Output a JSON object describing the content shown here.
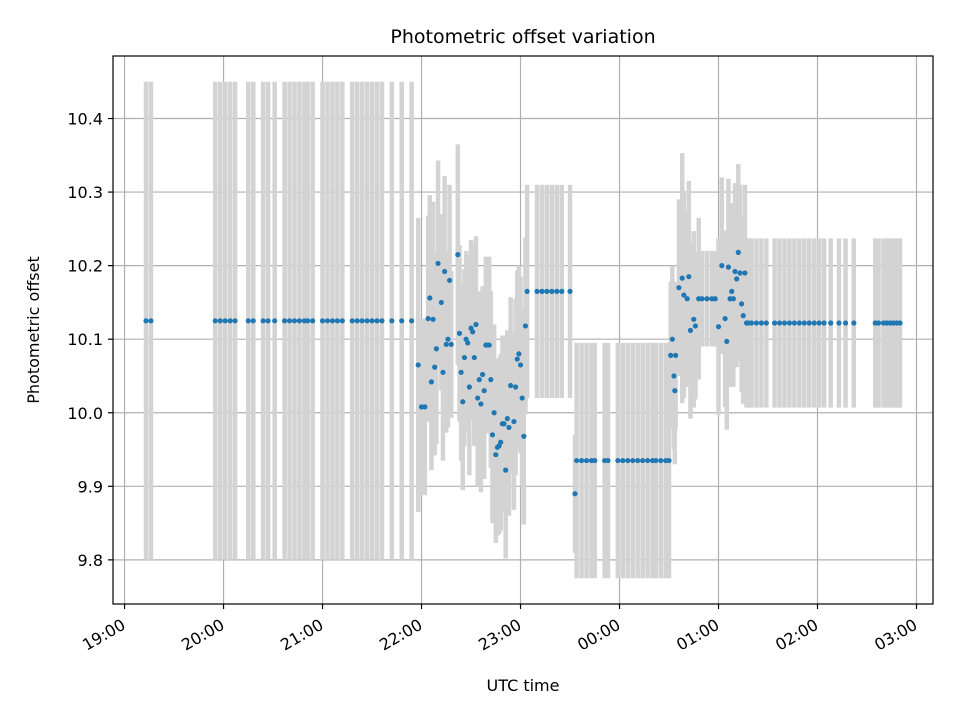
{
  "chart_data": {
    "type": "scatter",
    "title": "Photometric offset variation",
    "xlabel": "UTC time",
    "ylabel": "Photometric offset",
    "x_ticks": [
      "19:00",
      "20:00",
      "21:00",
      "22:00",
      "23:00",
      "00:00",
      "01:00",
      "02:00",
      "03:00"
    ],
    "y_ticks": [
      "9.8",
      "9.9",
      "10.0",
      "10.1",
      "10.2",
      "10.3",
      "10.4"
    ],
    "x_tick_values_min": [
      -300,
      -240,
      -180,
      -120,
      -60,
      0,
      60,
      120,
      180
    ],
    "y_tick_values": [
      9.8,
      9.9,
      10.0,
      10.1,
      10.2,
      10.3,
      10.4
    ],
    "xlim_min": [
      -307,
      190
    ],
    "ylim": [
      9.74,
      10.485
    ],
    "grid": true,
    "colors": {
      "marker": "#1f77b4",
      "errorbar": "#d3d3d3",
      "grid": "#b0b0b0"
    },
    "points": [
      [
        -287,
        10.125,
        0.325
      ],
      [
        -284,
        10.125,
        0.325
      ],
      [
        -245,
        10.125,
        0.325
      ],
      [
        -242,
        10.125,
        0.325
      ],
      [
        -239,
        10.125,
        0.325
      ],
      [
        -236,
        10.125,
        0.325
      ],
      [
        -233,
        10.125,
        0.325
      ],
      [
        -225,
        10.125,
        0.325
      ],
      [
        -222,
        10.125,
        0.325
      ],
      [
        -216,
        10.125,
        0.325
      ],
      [
        -213,
        10.125,
        0.325
      ],
      [
        -209,
        10.125,
        0.325
      ],
      [
        -203,
        10.125,
        0.325
      ],
      [
        -200,
        10.125,
        0.325
      ],
      [
        -197,
        10.125,
        0.325
      ],
      [
        -194,
        10.125,
        0.325
      ],
      [
        -191,
        10.125,
        0.325
      ],
      [
        -189,
        10.125,
        0.325
      ],
      [
        -186,
        10.125,
        0.325
      ],
      [
        -180,
        10.125,
        0.325
      ],
      [
        -177,
        10.125,
        0.325
      ],
      [
        -174,
        10.125,
        0.325
      ],
      [
        -171,
        10.125,
        0.325
      ],
      [
        -168,
        10.125,
        0.325
      ],
      [
        -162,
        10.125,
        0.325
      ],
      [
        -159,
        10.125,
        0.325
      ],
      [
        -156,
        10.125,
        0.325
      ],
      [
        -153,
        10.125,
        0.325
      ],
      [
        -150,
        10.125,
        0.325
      ],
      [
        -147,
        10.125,
        0.325
      ],
      [
        -144,
        10.125,
        0.325
      ],
      [
        -138,
        10.125,
        0.325
      ],
      [
        -132,
        10.125,
        0.325
      ],
      [
        -126,
        10.125,
        0.325
      ],
      [
        -122,
        10.065,
        0.2
      ],
      [
        -120,
        10.008,
        0.12
      ],
      [
        -118,
        10.008,
        0.12
      ],
      [
        -116,
        10.128,
        0.14
      ],
      [
        -115,
        10.156,
        0.14
      ],
      [
        -114,
        10.042,
        0.12
      ],
      [
        -113,
        10.127,
        0.16
      ],
      [
        -112,
        10.062,
        0.12
      ],
      [
        -111,
        10.087,
        0.13
      ],
      [
        -110,
        10.203,
        0.14
      ],
      [
        -108,
        10.15,
        0.12
      ],
      [
        -107,
        10.055,
        0.12
      ],
      [
        -106,
        10.192,
        0.13
      ],
      [
        -105,
        10.093,
        0.12
      ],
      [
        -104,
        10.1,
        0.12
      ],
      [
        -103,
        10.18,
        0.13
      ],
      [
        -102,
        10.093,
        0.1
      ],
      [
        -98,
        10.215,
        0.15
      ],
      [
        -97,
        10.108,
        0.12
      ],
      [
        -96,
        10.055,
        0.12
      ],
      [
        -95,
        10.015,
        0.12
      ],
      [
        -94,
        10.075,
        0.12
      ],
      [
        -93,
        10.1,
        0.12
      ],
      [
        -92,
        10.095,
        0.12
      ],
      [
        -91,
        10.035,
        0.12
      ],
      [
        -90,
        10.115,
        0.12
      ],
      [
        -89,
        10.11,
        0.12
      ],
      [
        -88,
        10.075,
        0.12
      ],
      [
        -87,
        10.12,
        0.12
      ],
      [
        -86,
        10.02,
        0.12
      ],
      [
        -85,
        10.045,
        0.12
      ],
      [
        -84,
        10.012,
        0.12
      ],
      [
        -83,
        10.052,
        0.12
      ],
      [
        -82,
        10.03,
        0.12
      ],
      [
        -81,
        10.092,
        0.12
      ],
      [
        -80,
        10.092,
        0.12
      ],
      [
        -79,
        10.092,
        0.12
      ],
      [
        -78,
        10.045,
        0.12
      ],
      [
        -77,
        9.97,
        0.12
      ],
      [
        -76,
        10.0,
        0.12
      ],
      [
        -75,
        9.943,
        0.12
      ],
      [
        -74,
        9.953,
        0.12
      ],
      [
        -73,
        9.955,
        0.12
      ],
      [
        -72,
        9.96,
        0.12
      ],
      [
        -71,
        9.985,
        0.12
      ],
      [
        -70,
        9.985,
        0.12
      ],
      [
        -69,
        9.922,
        0.12
      ],
      [
        -68,
        9.992,
        0.12
      ],
      [
        -67,
        9.98,
        0.12
      ],
      [
        -66,
        10.037,
        0.12
      ],
      [
        -64,
        9.988,
        0.12
      ],
      [
        -63,
        10.035,
        0.12
      ],
      [
        -62,
        10.073,
        0.12
      ],
      [
        -61,
        10.08,
        0.12
      ],
      [
        -60,
        10.065,
        0.12
      ],
      [
        -59,
        10.02,
        0.12
      ],
      [
        -58,
        9.968,
        0.12
      ],
      [
        -57,
        10.118,
        0.12
      ],
      [
        -56,
        10.165,
        0.145
      ],
      [
        -50,
        10.165,
        0.145
      ],
      [
        -47,
        10.165,
        0.145
      ],
      [
        -44,
        10.165,
        0.145
      ],
      [
        -41,
        10.165,
        0.145
      ],
      [
        -38,
        10.165,
        0.145
      ],
      [
        -35,
        10.165,
        0.145
      ],
      [
        -30,
        10.165,
        0.145
      ],
      [
        -27,
        9.89,
        0.08
      ],
      [
        -26,
        9.935,
        0.16
      ],
      [
        -23,
        9.935,
        0.16
      ],
      [
        -20,
        9.935,
        0.16
      ],
      [
        -17,
        9.935,
        0.16
      ],
      [
        -15,
        9.935,
        0.16
      ],
      [
        -9,
        9.935,
        0.16
      ],
      [
        -7,
        9.935,
        0.16
      ],
      [
        -1,
        9.935,
        0.16
      ],
      [
        2,
        9.935,
        0.16
      ],
      [
        5,
        9.935,
        0.16
      ],
      [
        8,
        9.935,
        0.16
      ],
      [
        11,
        9.935,
        0.16
      ],
      [
        14,
        9.935,
        0.16
      ],
      [
        17,
        9.935,
        0.16
      ],
      [
        20,
        9.935,
        0.16
      ],
      [
        22,
        9.935,
        0.16
      ],
      [
        25,
        9.935,
        0.16
      ],
      [
        28,
        9.935,
        0.16
      ],
      [
        30,
        9.935,
        0.16
      ],
      [
        31,
        10.078,
        0.1
      ],
      [
        32,
        10.1,
        0.1
      ],
      [
        33,
        10.05,
        0.1
      ],
      [
        33.5,
        10.03,
        0.1
      ],
      [
        34,
        10.078,
        0.1
      ],
      [
        36,
        10.17,
        0.12
      ],
      [
        38,
        10.183,
        0.17
      ],
      [
        39,
        10.16,
        0.14
      ],
      [
        41,
        10.155,
        0.12
      ],
      [
        42,
        10.185,
        0.13
      ],
      [
        43,
        10.112,
        0.12
      ],
      [
        45,
        10.127,
        0.12
      ],
      [
        46,
        10.118,
        0.1
      ],
      [
        48,
        10.155,
        0.11
      ],
      [
        50,
        10.155,
        0.065
      ],
      [
        53,
        10.155,
        0.065
      ],
      [
        56,
        10.155,
        0.065
      ],
      [
        58,
        10.155,
        0.065
      ],
      [
        60,
        10.117,
        0.12
      ],
      [
        62,
        10.2,
        0.12
      ],
      [
        64,
        10.128,
        0.12
      ],
      [
        65,
        10.097,
        0.12
      ],
      [
        66,
        10.198,
        0.12
      ],
      [
        67,
        10.155,
        0.12
      ],
      [
        68,
        10.165,
        0.12
      ],
      [
        69,
        10.155,
        0.12
      ],
      [
        70,
        10.192,
        0.12
      ],
      [
        71,
        10.182,
        0.12
      ],
      [
        72,
        10.218,
        0.12
      ],
      [
        73,
        10.19,
        0.12
      ],
      [
        74,
        10.148,
        0.12
      ],
      [
        75,
        10.132,
        0.12
      ],
      [
        76,
        10.19,
        0.12
      ],
      [
        77,
        10.122,
        0.115
      ],
      [
        78,
        10.122,
        0.115
      ],
      [
        80,
        10.122,
        0.115
      ],
      [
        83,
        10.122,
        0.115
      ],
      [
        86,
        10.122,
        0.115
      ],
      [
        89,
        10.122,
        0.115
      ],
      [
        94,
        10.122,
        0.115
      ],
      [
        97,
        10.122,
        0.115
      ],
      [
        100,
        10.122,
        0.115
      ],
      [
        103,
        10.122,
        0.115
      ],
      [
        106,
        10.122,
        0.115
      ],
      [
        109,
        10.122,
        0.115
      ],
      [
        112,
        10.122,
        0.115
      ],
      [
        115,
        10.122,
        0.115
      ],
      [
        118,
        10.122,
        0.115
      ],
      [
        121,
        10.122,
        0.115
      ],
      [
        124,
        10.122,
        0.115
      ],
      [
        128,
        10.122,
        0.115
      ],
      [
        133,
        10.122,
        0.115
      ],
      [
        137,
        10.122,
        0.115
      ],
      [
        142,
        10.122,
        0.115
      ],
      [
        155,
        10.122,
        0.115
      ],
      [
        157,
        10.122,
        0.115
      ],
      [
        160,
        10.122,
        0.115
      ],
      [
        162,
        10.122,
        0.115
      ],
      [
        164,
        10.122,
        0.115
      ],
      [
        166,
        10.122,
        0.115
      ],
      [
        168,
        10.122,
        0.115
      ],
      [
        170,
        10.122,
        0.115
      ]
    ]
  }
}
